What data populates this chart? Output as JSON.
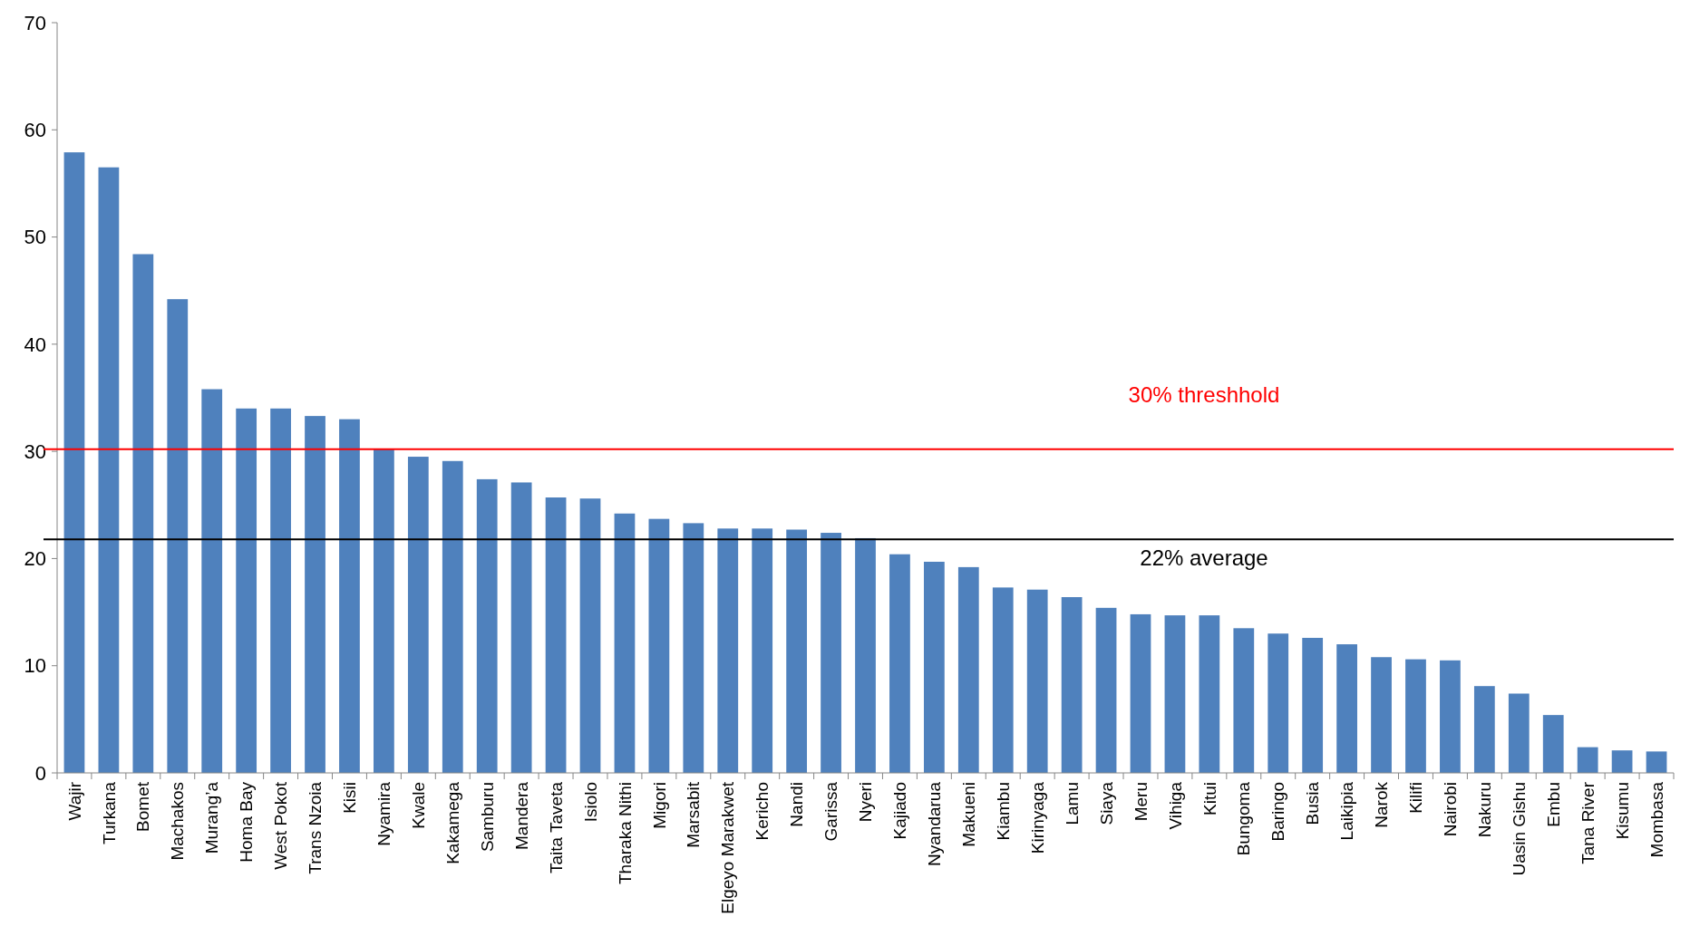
{
  "chart_data": {
    "type": "bar",
    "categories": [
      "Wajir",
      "Turkana",
      "Bomet",
      "Machakos",
      "Murang’a",
      "Homa Bay",
      "West Pokot",
      "Trans Nzoia",
      "Kisii",
      "Nyamira",
      "Kwale",
      "Kakamega",
      "Samburu",
      "Mandera",
      "Taita Taveta",
      "Isiolo",
      "Tharaka Nithi",
      "Migori",
      "Marsabit",
      "Elgeyo Marakwet",
      "Kericho",
      "Nandi",
      "Garissa",
      "Nyeri",
      "Kajiado",
      "Nyandarua",
      "Makueni",
      "Kiambu",
      "Kirinyaga",
      "Lamu",
      "Siaya",
      "Meru",
      "Vihiga",
      "Kitui",
      "Bungoma",
      "Baringo",
      "Busia",
      "Laikipia",
      "Narok",
      "Kilifi",
      "Nairobi",
      "Nakuru",
      "Uasin Gishu",
      "Embu",
      "Tana River",
      "Kisumu",
      "Mombasa"
    ],
    "values": [
      57.9,
      56.5,
      48.4,
      44.2,
      35.8,
      34.0,
      34.0,
      33.3,
      33.0,
      30.2,
      29.5,
      29.1,
      27.4,
      27.1,
      25.7,
      25.6,
      24.2,
      23.7,
      23.3,
      22.8,
      22.8,
      22.7,
      22.4,
      21.9,
      20.4,
      19.7,
      19.2,
      17.3,
      17.1,
      16.4,
      15.4,
      14.8,
      14.7,
      14.7,
      13.5,
      13.0,
      12.6,
      12.0,
      10.8,
      10.6,
      10.5,
      8.1,
      7.4,
      5.4,
      2.4,
      2.1,
      2.0
    ],
    "color": "#4f81bd",
    "ylim": [
      0,
      70
    ],
    "yticks": [
      0,
      10,
      20,
      30,
      40,
      50,
      60,
      70
    ],
    "ref_lines": [
      {
        "axis": "y",
        "value": 30.2,
        "label": "30% threshhold",
        "color": "#ff0000"
      },
      {
        "axis": "y",
        "value": 21.8,
        "label": "22% average",
        "color": "#000000"
      }
    ]
  }
}
